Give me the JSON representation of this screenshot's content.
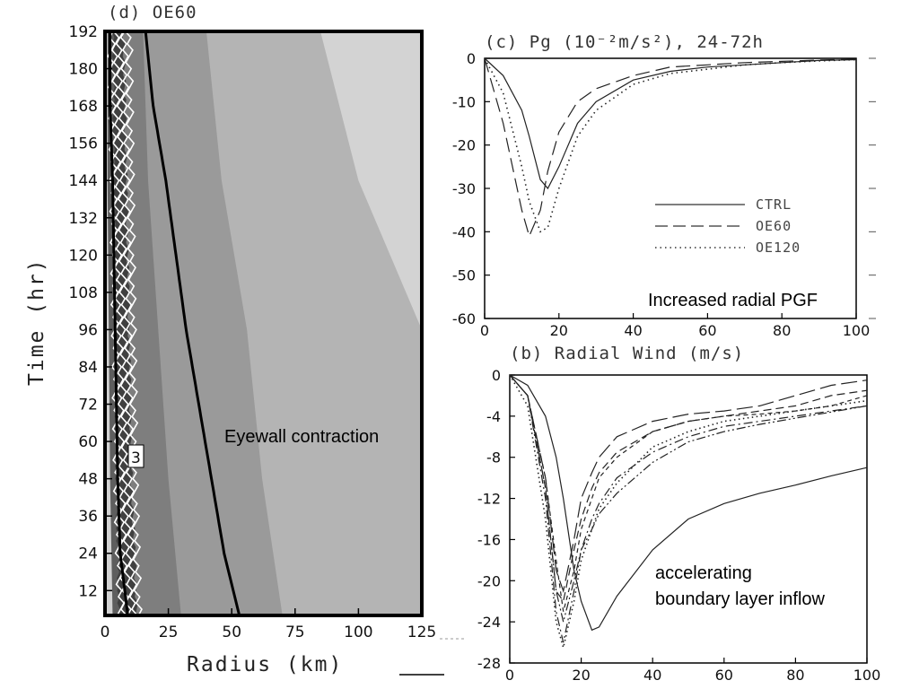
{
  "chart_data": [
    {
      "id": "d",
      "type": "heatmap",
      "title": "(d) OE60",
      "xlabel": "Radius (km)",
      "ylabel": "Time (hr)",
      "xlim": [
        0,
        125
      ],
      "ylim": [
        4,
        192
      ],
      "xticks": [
        "0",
        "25",
        "50",
        "75",
        "100",
        "125"
      ],
      "yticks": [
        "12",
        "24",
        "36",
        "48",
        "60",
        "72",
        "84",
        "96",
        "108",
        "120",
        "132",
        "144",
        "156",
        "168",
        "180",
        "192"
      ],
      "shading_colors": [
        "#d3d3d3",
        "#b4b4b4",
        "#9a9a9a",
        "#7e7e7e",
        "#5e5e5e",
        "#404040"
      ],
      "contour_label": "3",
      "annotation": "Eyewall contraction",
      "thick_contours": {
        "time": [
          4,
          24,
          48,
          72,
          96,
          120,
          144,
          168,
          192
        ],
        "inner_radius": [
          9,
          6,
          5,
          4.5,
          4,
          3.5,
          3,
          2,
          2
        ],
        "outer_radius": [
          53,
          47,
          42,
          37,
          32,
          28,
          24,
          19,
          16
        ]
      },
      "shade_boundaries": {
        "time": [
          4,
          48,
          96,
          144,
          192
        ],
        "light_outer": [
          3,
          2,
          1.5,
          1,
          1
        ],
        "r_b1": [
          12,
          10,
          9,
          8,
          7
        ],
        "r_b2": [
          30,
          25,
          21,
          17,
          15
        ],
        "r_b3": [
          70,
          62,
          56,
          46,
          40
        ],
        "r_lightest": [
          null,
          null,
          125,
          100,
          85
        ]
      }
    },
    {
      "id": "c",
      "type": "line",
      "title": "(c) Pg (10⁻²m/s²), 24-72h",
      "annotation": "Increased radial PGF",
      "xlim": [
        0,
        100
      ],
      "ylim": [
        -60,
        0
      ],
      "xticks": [
        "0",
        "20",
        "40",
        "60",
        "80",
        "100"
      ],
      "yticks": [
        "0",
        "-10",
        "-20",
        "-30",
        "-40",
        "-50",
        "-60"
      ],
      "x": [
        0,
        5,
        10,
        12,
        15,
        17,
        20,
        25,
        30,
        40,
        50,
        60,
        70,
        80,
        90,
        100
      ],
      "series": [
        {
          "name": "CTRL",
          "style": "solid",
          "values": [
            0,
            -4,
            -12,
            -18,
            -28,
            -30,
            -25,
            -15,
            -10,
            -5,
            -3,
            -2,
            -1.5,
            -1,
            -0.5,
            -0.3
          ]
        },
        {
          "name": "OE60",
          "style": "dashed",
          "values": [
            0,
            -15,
            -35,
            -41,
            -35,
            -26,
            -17,
            -10,
            -7,
            -4,
            -2,
            -1.5,
            -1,
            -0.7,
            -0.4,
            -0.2
          ]
        },
        {
          "name": "OE120",
          "style": "dotted",
          "values": [
            0,
            -8,
            -25,
            -33,
            -40,
            -39,
            -30,
            -18,
            -12,
            -6,
            -3.5,
            -2.5,
            -1.5,
            -1,
            -0.6,
            -0.3
          ]
        }
      ]
    },
    {
      "id": "b",
      "type": "line",
      "title": "(b) Radial Wind (m/s)",
      "annotation_lines": [
        "accelerating",
        "boundary layer inflow"
      ],
      "xlim": [
        0,
        100
      ],
      "ylim": [
        -28,
        0
      ],
      "xticks": [
        "0",
        "20",
        "40",
        "60",
        "80",
        "100"
      ],
      "yticks": [
        "0",
        "-4",
        "-8",
        "-12",
        "-16",
        "-20",
        "-24",
        "-28"
      ],
      "x": [
        0,
        5,
        10,
        13,
        15,
        18,
        20,
        23,
        25,
        30,
        40,
        50,
        60,
        70,
        80,
        90,
        100
      ],
      "series": [
        {
          "style": "solid",
          "values": [
            0,
            -1,
            -4,
            -8,
            -12,
            -19,
            -22,
            -24.8,
            -24.5,
            -21.5,
            -17,
            -14,
            -12.5,
            -11.5,
            -10.7,
            -9.8,
            -9
          ]
        },
        {
          "style": "longdash",
          "values": [
            0,
            -2,
            -10,
            -19,
            -21,
            -16,
            -12,
            -9.5,
            -8,
            -6,
            -4.5,
            -3.8,
            -3.5,
            -3,
            -2,
            -1,
            -0.5
          ]
        },
        {
          "style": "dash",
          "values": [
            0,
            -2,
            -11,
            -21,
            -22,
            -17,
            -14,
            -11,
            -9.5,
            -7.5,
            -5.5,
            -4.5,
            -4,
            -3.5,
            -3,
            -2,
            -1.5
          ]
        },
        {
          "style": "dashdot",
          "values": [
            0,
            -2,
            -12,
            -23,
            -26,
            -21,
            -17,
            -14,
            -12.5,
            -10,
            -7.5,
            -6,
            -5,
            -4.5,
            -4,
            -3.5,
            -3
          ]
        },
        {
          "style": "dot",
          "values": [
            0,
            -3,
            -14,
            -24,
            -26.5,
            -22,
            -18,
            -15,
            -13,
            -10.5,
            -7,
            -5.5,
            -4.5,
            -4,
            -3.5,
            -3,
            -2.5
          ]
        },
        {
          "style": "dashdotdot",
          "values": [
            0,
            -2,
            -11,
            -21,
            -24,
            -20,
            -17,
            -15,
            -13.5,
            -11.5,
            -8.5,
            -6.5,
            -5.5,
            -4.8,
            -4.2,
            -3.6,
            -3
          ]
        },
        {
          "style": "shortdash",
          "values": [
            0,
            -2,
            -10,
            -18,
            -23,
            -19,
            -15,
            -12,
            -10,
            -8,
            -5.5,
            -4.5,
            -4,
            -3.8,
            -3.5,
            -3,
            -2
          ]
        }
      ]
    }
  ]
}
